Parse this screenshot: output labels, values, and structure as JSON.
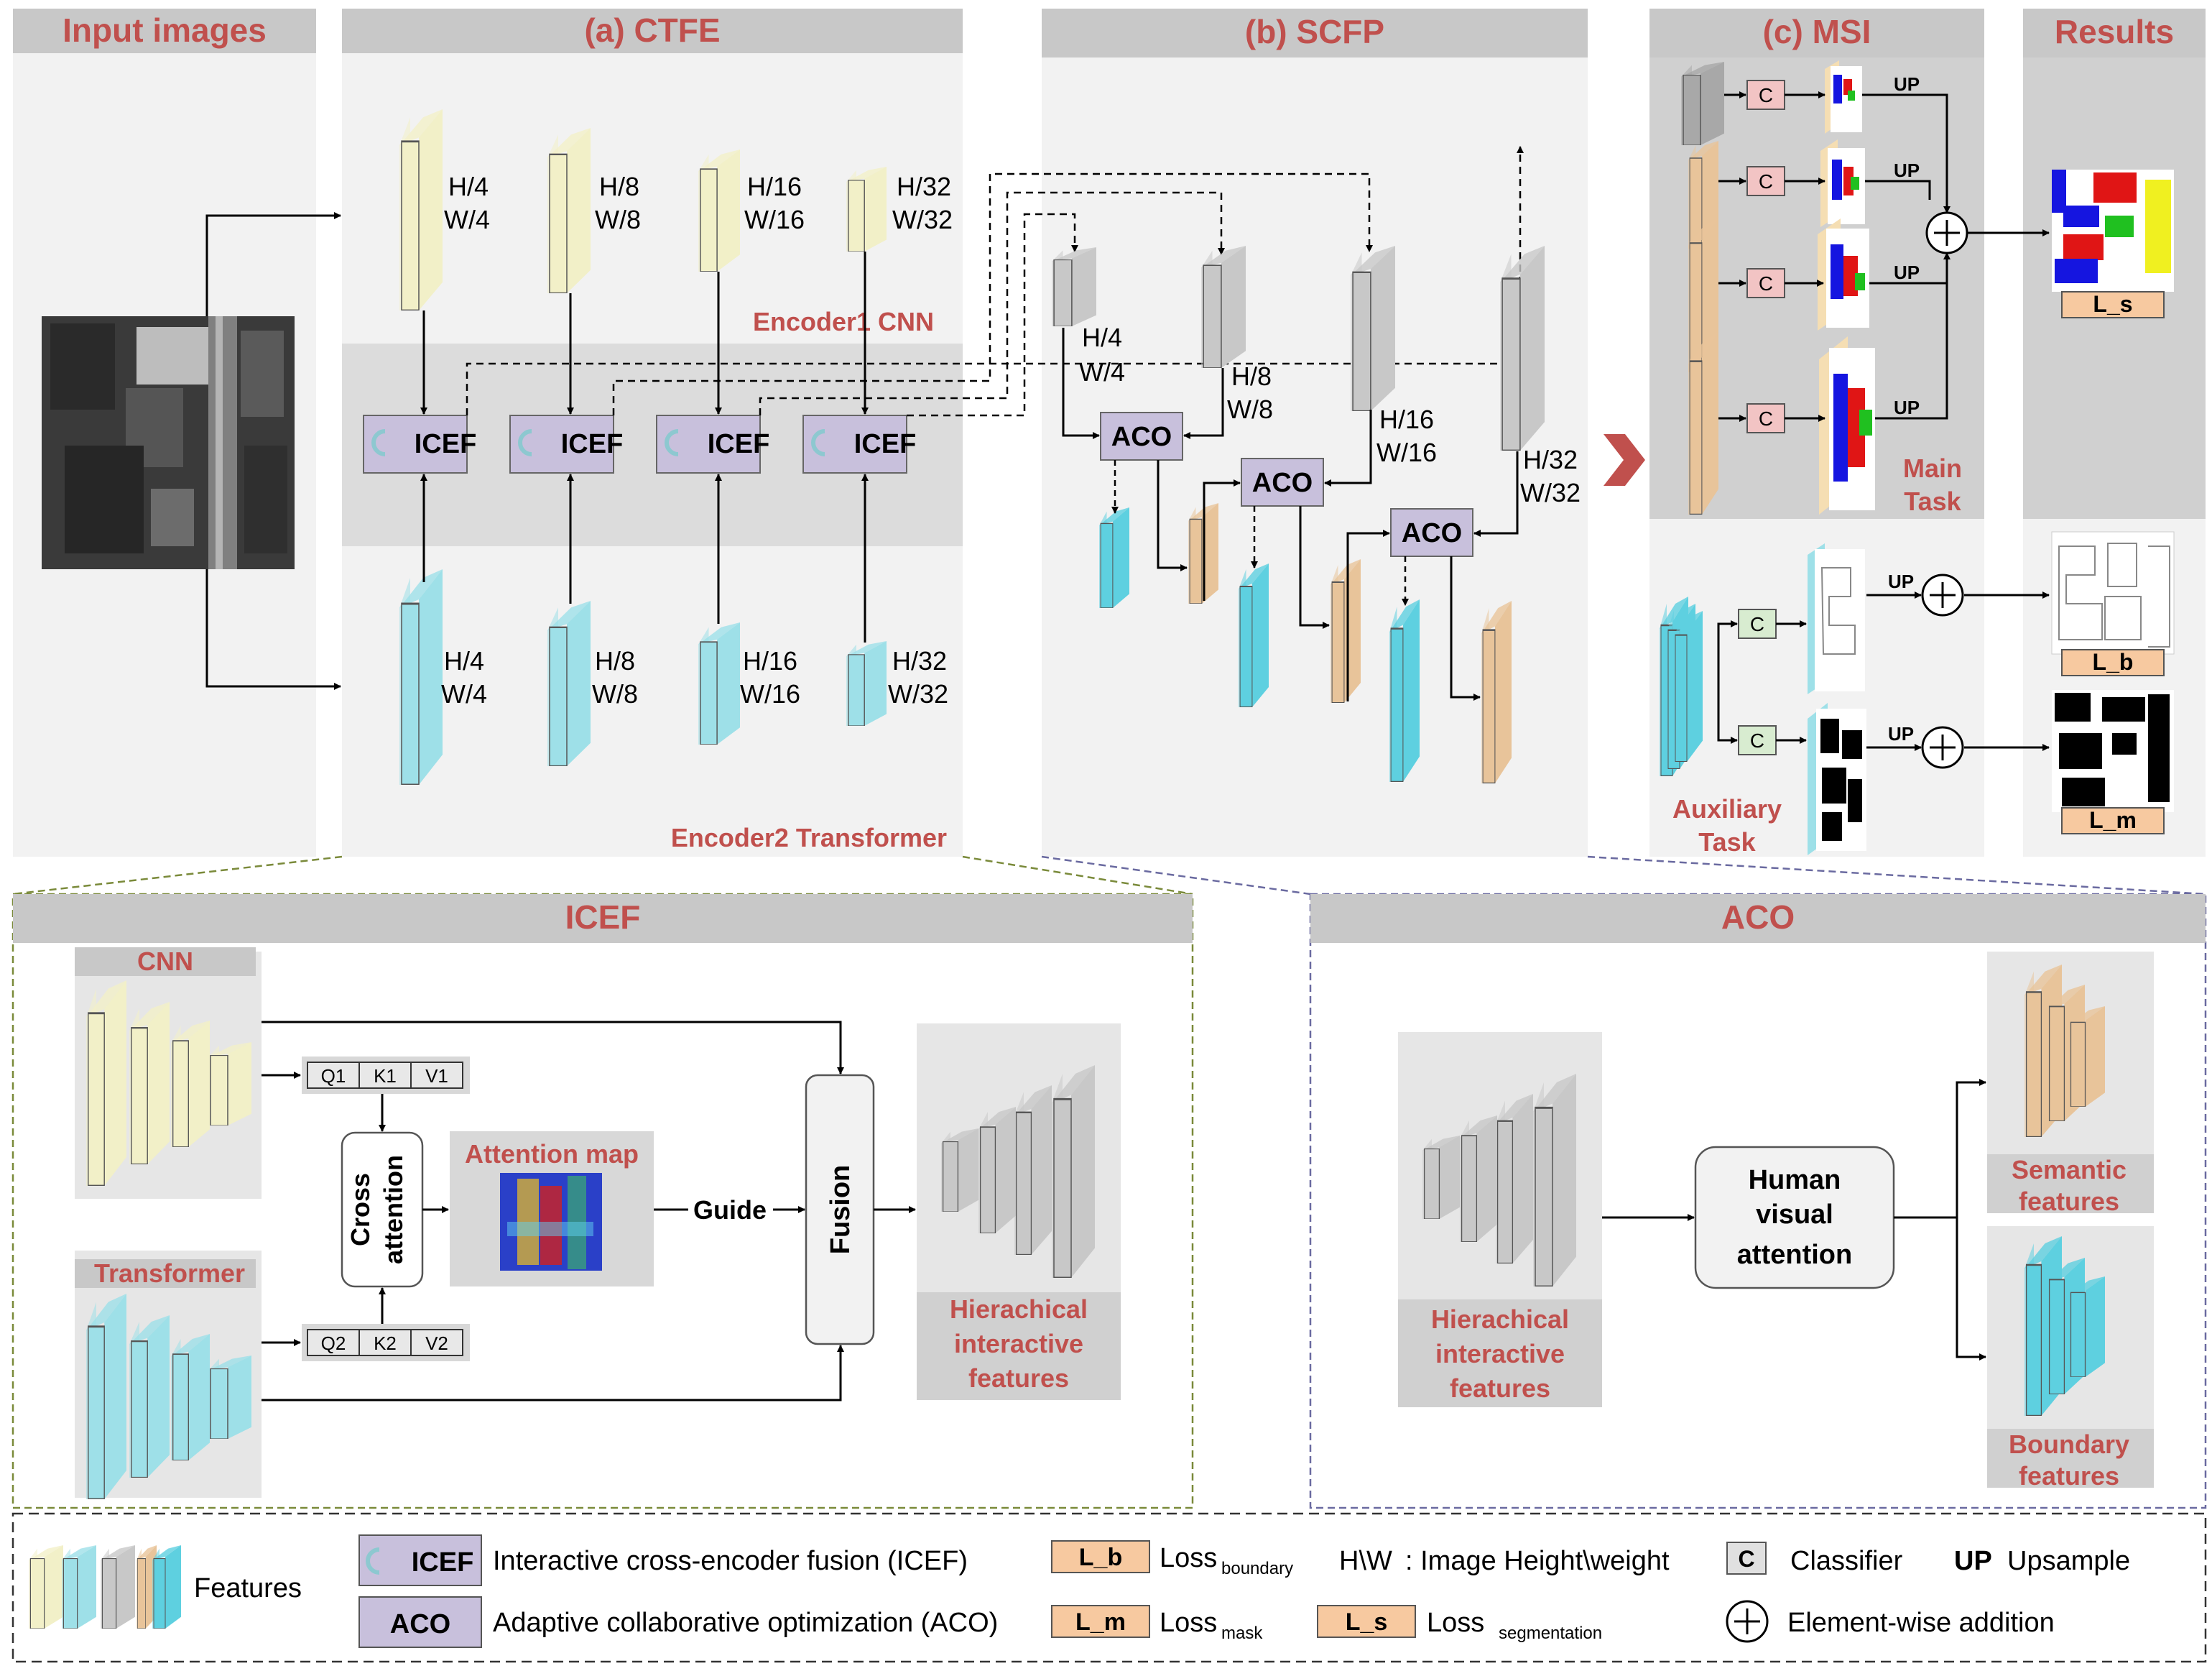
{
  "headers": {
    "input": "Input images",
    "ctfe": "(a) CTFE",
    "scfp": "(b) SCFP",
    "msi": "(c) MSI",
    "results": "Results",
    "icef": "ICEF",
    "aco": "ACO"
  },
  "ctfe": {
    "encoder1": "Encoder1 CNN",
    "encoder2": "Encoder2 Transformer",
    "cnn_scales": [
      {
        "h": "H/4",
        "w": "W/4"
      },
      {
        "h": "H/8",
        "w": "W/8"
      },
      {
        "h": "H/16",
        "w": "W/16"
      },
      {
        "h": "H/32",
        "w": "W/32"
      }
    ],
    "tr_scales": [
      {
        "h": "H/4",
        "w": "W/4"
      },
      {
        "h": "H/8",
        "w": "W/8"
      },
      {
        "h": "H/16",
        "w": "W/16"
      },
      {
        "h": "H/32",
        "w": "W/32"
      }
    ],
    "fusion_label": "ICEF"
  },
  "scfp": {
    "scales": [
      {
        "h": "H/4",
        "w": "W/4"
      },
      {
        "h": "H/8",
        "w": "W/8"
      },
      {
        "h": "H/16",
        "w": "W/16"
      },
      {
        "h": "H/32",
        "w": "W/32"
      }
    ],
    "aco_label": "ACO"
  },
  "msi": {
    "classifier": "C",
    "upsample": "UP",
    "main_task": [
      "Main",
      "Task"
    ],
    "aux_task": [
      "Auxiliary",
      "Task"
    ]
  },
  "results": {
    "seg": "L_s",
    "boundary": "L_b",
    "mask": "L_m"
  },
  "icef_detail": {
    "cnn": "CNN",
    "transformer": "Transformer",
    "q1": "Q1",
    "k1": "K1",
    "v1": "V1",
    "q2": "Q2",
    "k2": "K2",
    "v2": "V2",
    "cross": "Cross",
    "attention": "attention",
    "attention_map": "Attention map",
    "guide": "Guide",
    "fusion": "Fusion",
    "output": [
      "Hierachical",
      "interactive",
      "features"
    ]
  },
  "aco_detail": {
    "input": [
      "Hierachical",
      "interactive",
      "features"
    ],
    "hva": [
      "Human",
      "visual",
      "attention"
    ],
    "semantic": [
      "Semantic",
      "features"
    ],
    "boundary": [
      "Boundary",
      "features"
    ]
  },
  "legend": {
    "features": "Features",
    "icef_box": "ICEF",
    "icef_desc": "Interactive cross-encoder fusion (ICEF)",
    "aco_box": "ACO",
    "aco_desc": "Adaptive collaborative optimization (ACO)",
    "lb_box": "L_b",
    "lb_loss": "Loss",
    "lb_sub": "boundary",
    "lm_box": "L_m",
    "lm_loss": "Loss",
    "lm_sub": "mask",
    "ls_box": "L_s",
    "ls_loss": "Loss",
    "ls_sub": "segmentation",
    "hw_key": "H\\W",
    "hw_desc": ":  Image Height\\weight",
    "c_box": "C",
    "c_desc": "Classifier",
    "up_key": "UP",
    "up_desc": "Upsample",
    "add_desc": "Element-wise addition"
  },
  "colors": {
    "header_bg": "#c8c8c8",
    "panel_bg": "#f2f2f2",
    "accent_red": "#c0504d",
    "cnn_yellow": "#f2f0c8",
    "transformer_cyan": "#9ee0e8",
    "feat_gray": "#c8c8c8",
    "semantic_tan": "#e8c49a",
    "boundary_cyan": "#5ed0e0",
    "icef_purple": "#c8c0dc",
    "loss_orange": "#f7c9a0",
    "classifier_red": "#f2c4c4",
    "classifier_green": "#d8ecd0"
  }
}
